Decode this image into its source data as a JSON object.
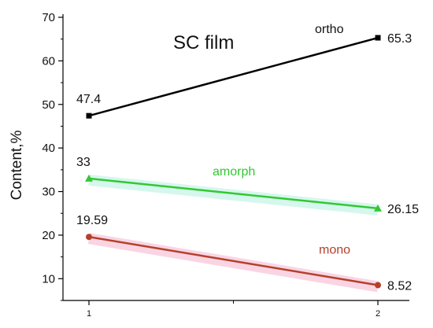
{
  "chart_data": {
    "type": "line",
    "title": "SC film",
    "xlabel": "",
    "ylabel": "Content,%",
    "x": [
      1,
      2
    ],
    "xticks": [
      "1",
      "2"
    ],
    "yticks": [
      10,
      20,
      30,
      40,
      50,
      60,
      70
    ],
    "ylim": [
      5,
      70
    ],
    "grid": false,
    "series": [
      {
        "name": "ortho",
        "values": [
          47.4,
          65.3
        ],
        "labels": [
          "47.4",
          "65.3"
        ],
        "color": "#000000",
        "marker": "square",
        "glow": "none"
      },
      {
        "name": "amorph",
        "values": [
          33,
          26.15
        ],
        "labels": [
          "33",
          "26.15"
        ],
        "color": "#33c833",
        "marker": "triangle",
        "glow": "#c8f5e8"
      },
      {
        "name": "mono",
        "values": [
          19.59,
          8.52
        ],
        "labels": [
          "19.59",
          "8.52"
        ],
        "color": "#b5402a",
        "marker": "circle",
        "glow": "#f8c8dc"
      }
    ]
  }
}
